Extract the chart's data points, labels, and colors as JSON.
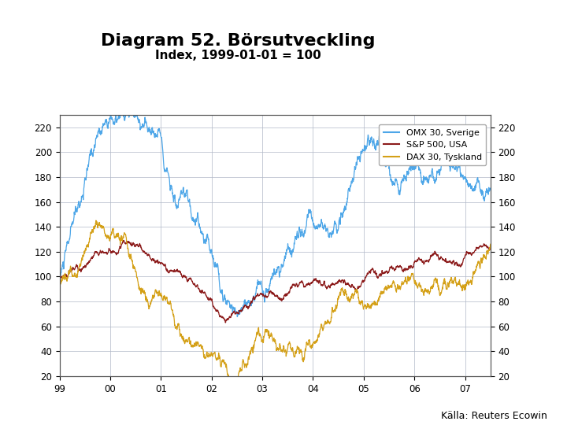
{
  "title": "Diagram 52. Börsutveckling",
  "subtitle": "Index, 1999-01-01 = 100",
  "title_fontsize": 16,
  "subtitle_fontsize": 11,
  "background_color": "#ffffff",
  "plot_bg_color": "#ffffff",
  "grid_color": "#b0b8c8",
  "footer_color": "#1a3c7c",
  "footer_text": "Källa: Reuters Ecowin",
  "ylim": [
    20,
    230
  ],
  "yticks": [
    20,
    40,
    60,
    80,
    100,
    120,
    140,
    160,
    180,
    200,
    220
  ],
  "xtick_labels": [
    "99",
    "00",
    "01",
    "02",
    "03",
    "04",
    "05",
    "06",
    "07"
  ],
  "legend": [
    "OMX 30, Sverige",
    "S&P 500, USA",
    "DAX 30, Tyskland"
  ],
  "colors": {
    "omx": "#4da6e8",
    "sp500": "#8b1a1a",
    "dax": "#d4a017"
  },
  "line_width": 0.9,
  "logo_color": "#1a3c7c"
}
